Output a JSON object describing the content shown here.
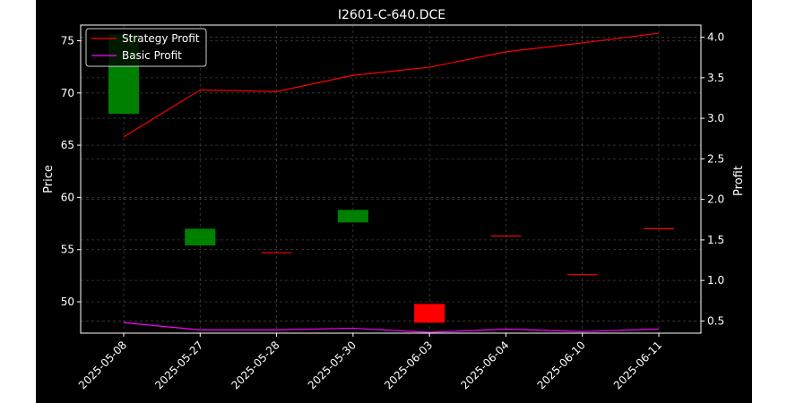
{
  "chart_data": {
    "type": "candlestick_with_lines",
    "title": "I2601-C-640.DCE",
    "xlabel": "",
    "ylabel_left": "Price",
    "ylabel_right": "Profit",
    "categories": [
      "2025-05-08",
      "2025-05-27",
      "2025-05-28",
      "2025-05-30",
      "2025-06-03",
      "2025-06-04",
      "2025-06-10",
      "2025-06-11"
    ],
    "ylim_left": [
      47,
      76.5
    ],
    "ylim_right": [
      0.35,
      4.15
    ],
    "yticks_left": [
      50,
      55,
      60,
      65,
      70,
      75
    ],
    "yticks_right": [
      0.5,
      1.0,
      1.5,
      2.0,
      2.5,
      3.0,
      3.5,
      4.0
    ],
    "candles": [
      {
        "open": 68.0,
        "close": 75.6,
        "color": "#008000"
      },
      {
        "open": 55.4,
        "close": 57.0,
        "color": "#008000"
      },
      {
        "open": 54.7,
        "close": 54.7,
        "color": "#ff0000"
      },
      {
        "open": 57.6,
        "close": 58.8,
        "color": "#008000"
      },
      {
        "open": 49.8,
        "close": 48.0,
        "color": "#ff0000"
      },
      {
        "open": 56.3,
        "close": 56.3,
        "color": "#ff0000"
      },
      {
        "open": 52.6,
        "close": 52.6,
        "color": "#ff0000"
      },
      {
        "open": 57.0,
        "close": 57.0,
        "color": "#ff0000"
      }
    ],
    "series": [
      {
        "name": "Strategy Profit",
        "color": "#ff0000",
        "values": [
          2.77,
          3.35,
          3.33,
          3.53,
          3.63,
          3.82,
          3.93,
          4.05
        ]
      },
      {
        "name": "Basic Profit",
        "color": "#ff00ff",
        "values": [
          0.48,
          0.39,
          0.39,
          0.41,
          0.36,
          0.4,
          0.37,
          0.4
        ]
      }
    ],
    "grid": true,
    "legend": "top-left"
  }
}
